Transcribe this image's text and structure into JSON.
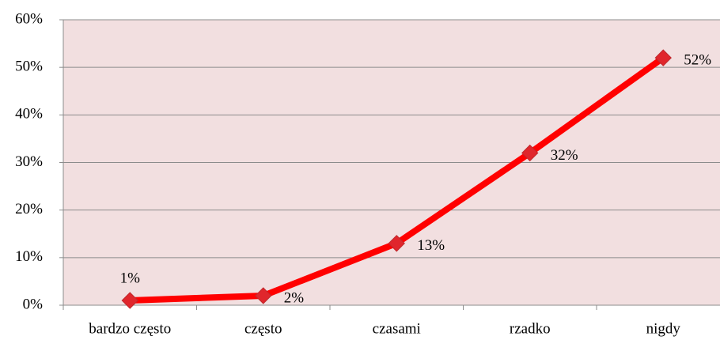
{
  "chart_data": {
    "type": "line",
    "categories": [
      "bardzo często",
      "często",
      "czasami",
      "rzadko",
      "nigdy"
    ],
    "values": [
      1,
      2,
      13,
      32,
      52
    ],
    "value_labels": [
      "1%",
      "2%",
      "13%",
      "32%",
      "52%"
    ],
    "color": "#ff0000",
    "ylim": [
      0,
      60
    ],
    "yticks": [
      {
        "value": 0,
        "label": "0%"
      },
      {
        "value": 10,
        "label": "10%"
      },
      {
        "value": 20,
        "label": "20%"
      },
      {
        "value": 30,
        "label": "30%"
      },
      {
        "value": 40,
        "label": "40%"
      },
      {
        "value": 50,
        "label": "50%"
      },
      {
        "value": 60,
        "label": "60%"
      }
    ],
    "grid": true
  }
}
